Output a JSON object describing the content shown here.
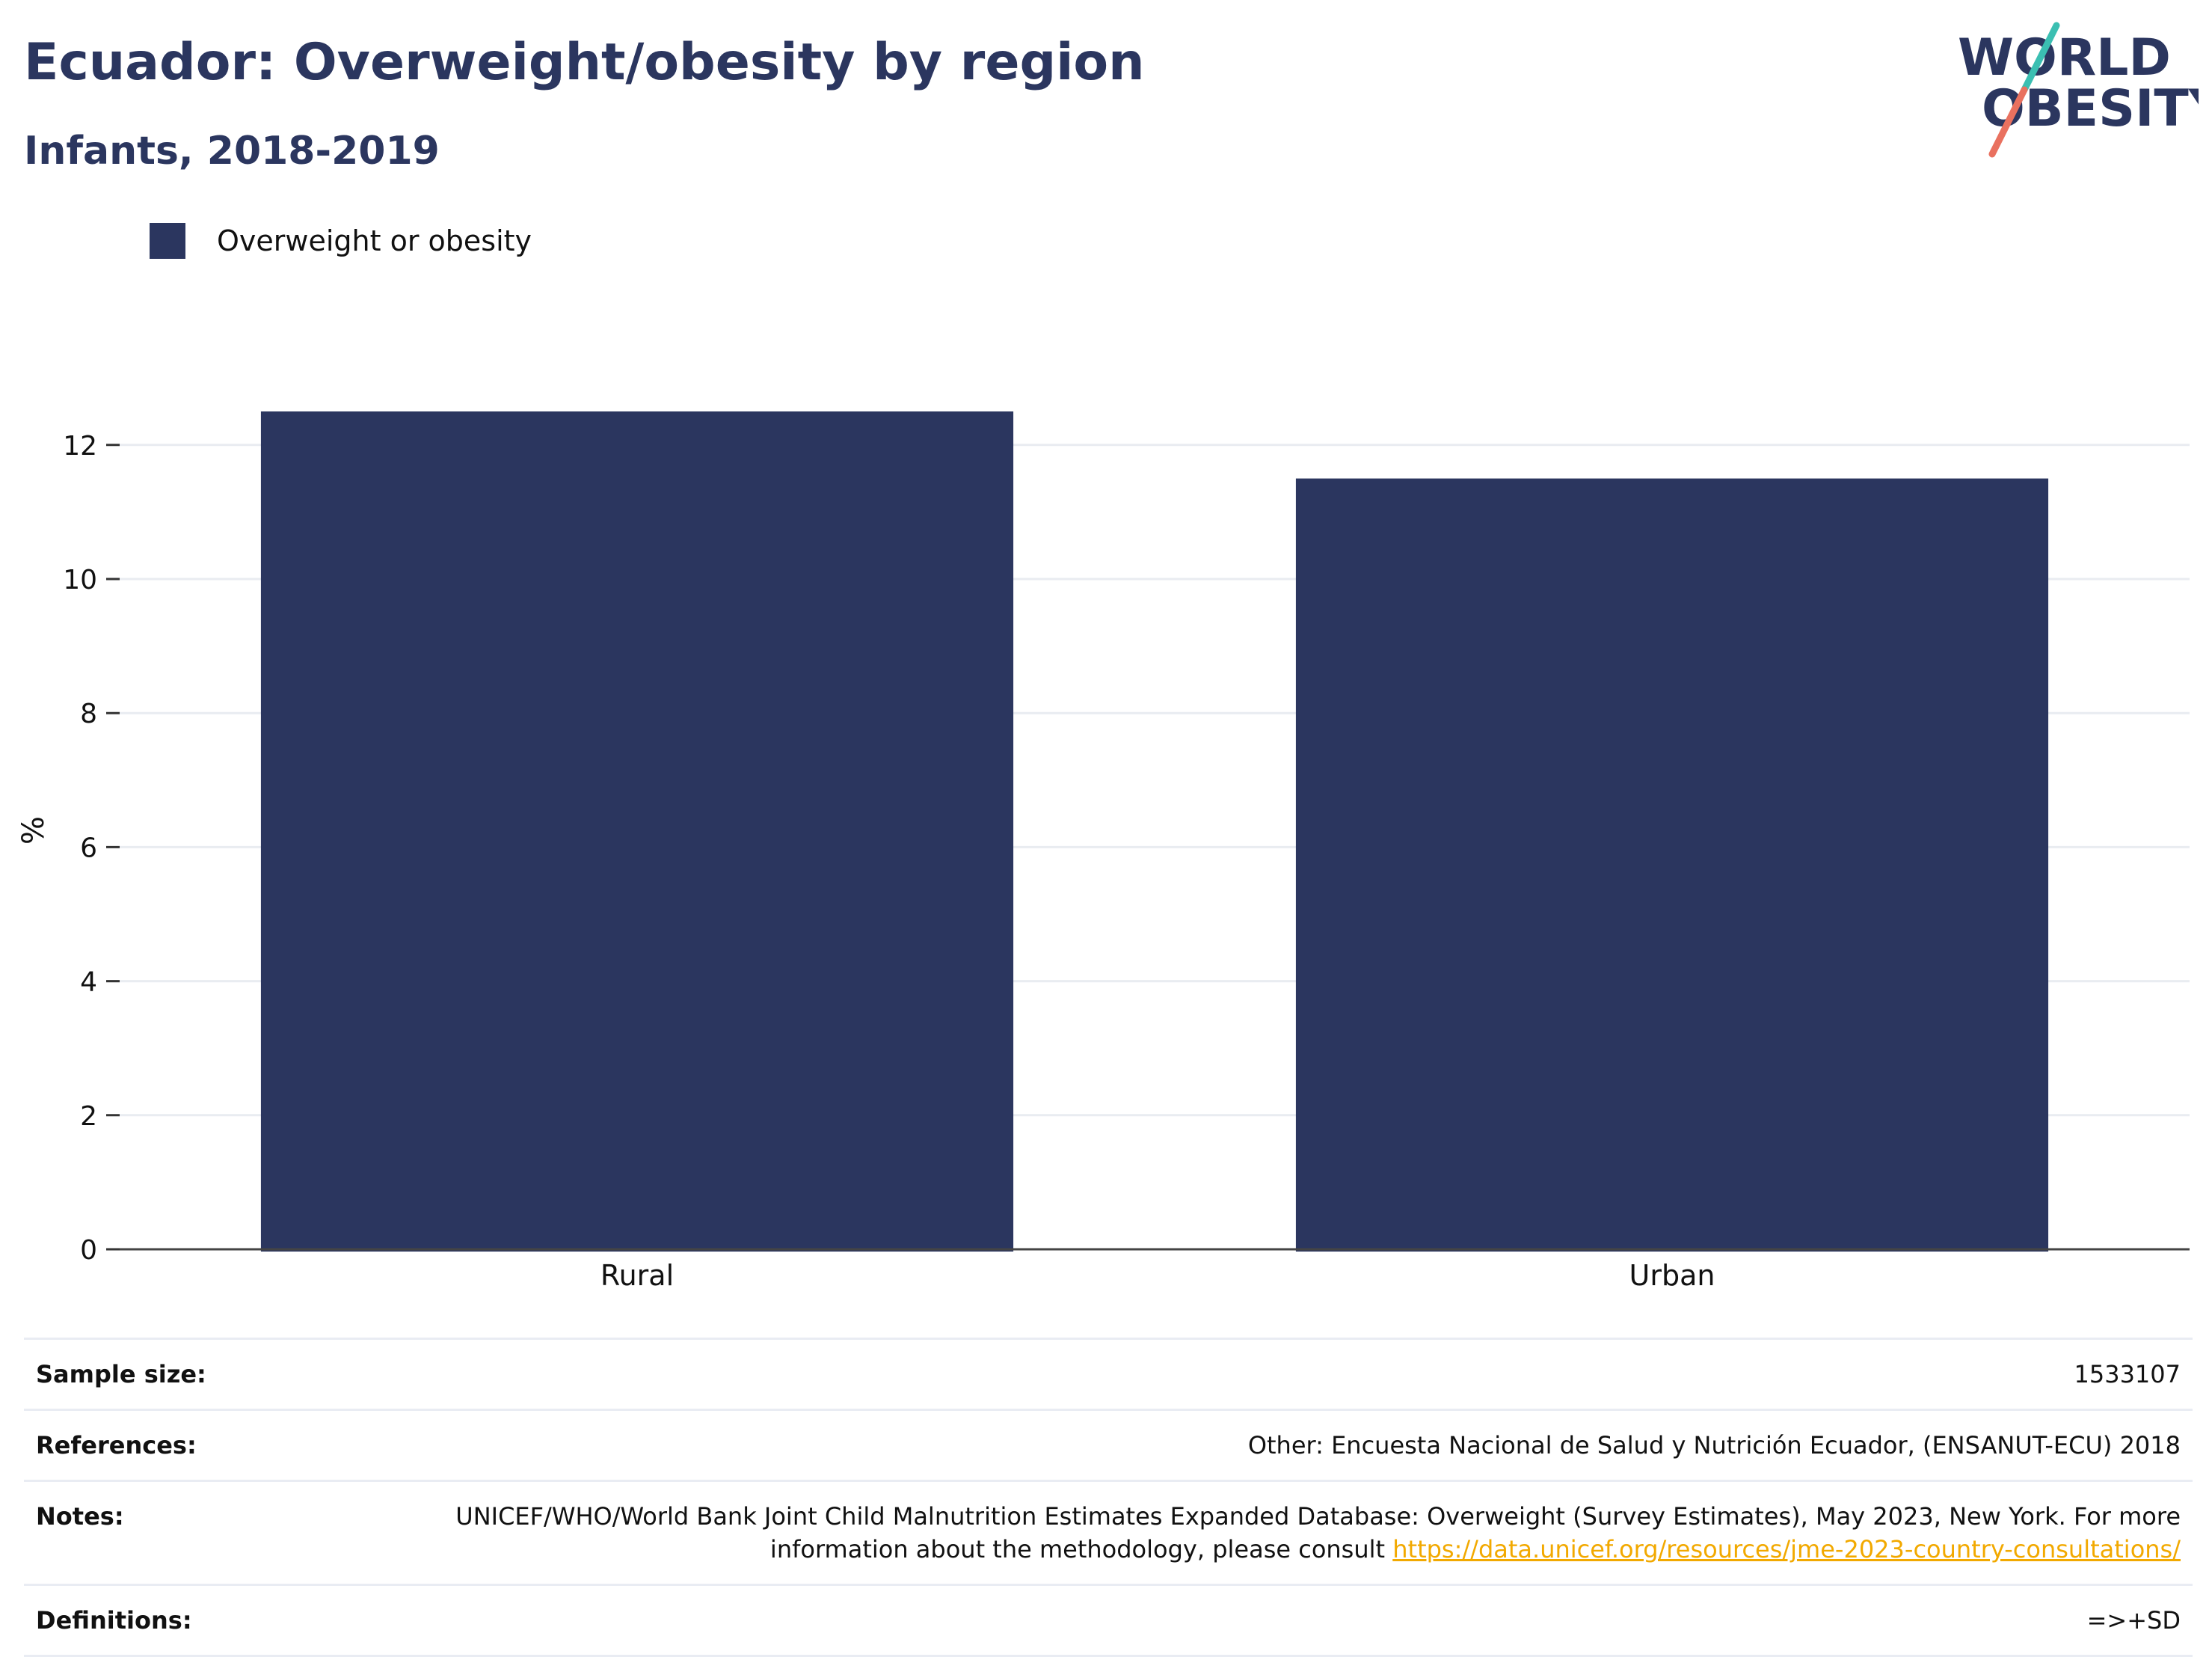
{
  "header": {
    "title": "Ecuador: Overweight/obesity by region",
    "subtitle": "Infants, 2018-2019"
  },
  "logo": {
    "line1": "WORLD",
    "line2": "OBESITY",
    "text_color": "#2b365f",
    "slash_teal": "#3bbfb2",
    "slash_coral": "#e9715f"
  },
  "legend": {
    "label": "Overweight or obesity",
    "color": "#2b365f"
  },
  "chart_data": {
    "type": "bar",
    "categories": [
      "Rural",
      "Urban"
    ],
    "series": [
      {
        "name": "Overweight or obesity",
        "values": [
          12.5,
          11.5
        ],
        "color": "#2b365f"
      }
    ],
    "xlabel": "",
    "ylabel": "%",
    "ylim": [
      0,
      12.5
    ],
    "yticks": [
      0,
      2,
      4,
      6,
      8,
      10,
      12
    ],
    "grid": true
  },
  "info": {
    "sample_size_label": "Sample size:",
    "sample_size_value": "1533107",
    "references_label": "References:",
    "references_value": "Other: Encuesta Nacional de Salud y Nutrición Ecuador, (ENSANUT-ECU) 2018",
    "notes_label": "Notes:",
    "notes_text": "UNICEF/WHO/World Bank Joint Child Malnutrition Estimates Expanded Database: Overweight (Survey Estimates), May 2023, New York. For more information about the methodology, please consult",
    "notes_link": "https://data.unicef.org/resources/jme-2023-country-consultations/",
    "definitions_label": "Definitions:",
    "definitions_value": "=>+SD"
  }
}
